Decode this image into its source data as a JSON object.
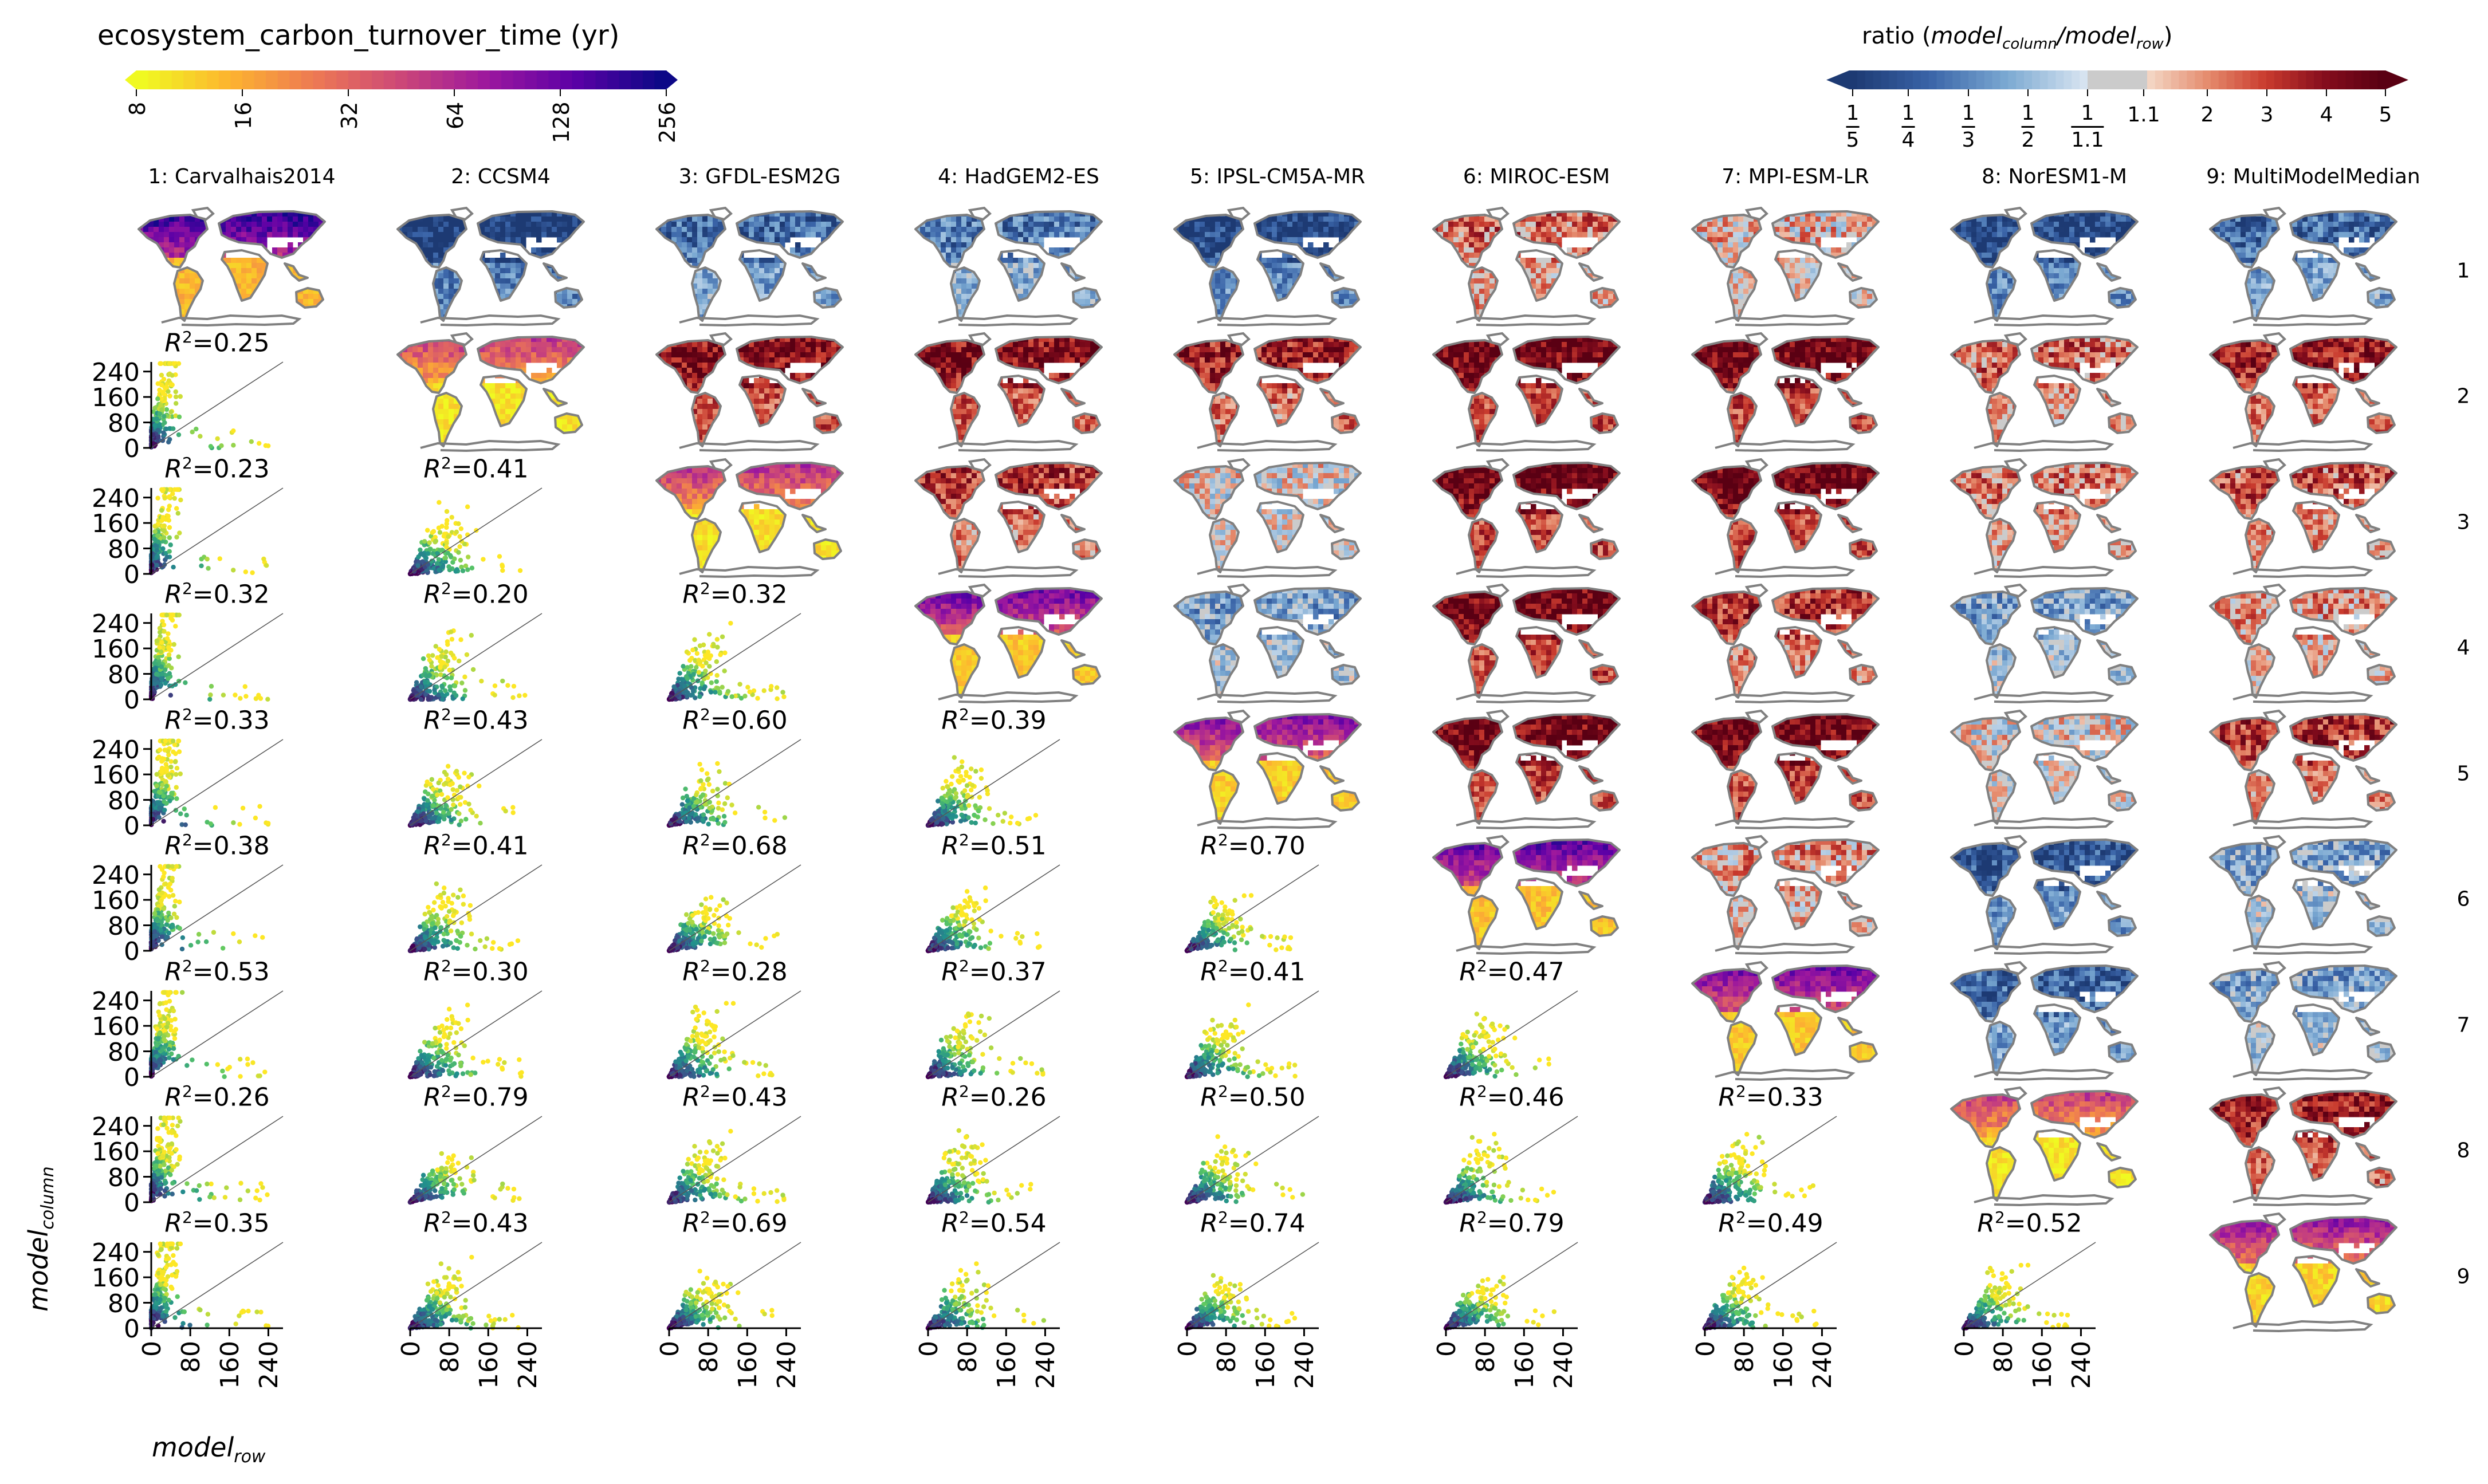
{
  "colorbar_left": {
    "title": "ecosystem_carbon_turnover_time (yr)",
    "ticks": [
      "8",
      "16",
      "32",
      "64",
      "128",
      "256"
    ],
    "scale": "log2",
    "range": [
      8,
      256
    ],
    "colormap": "plasma_r",
    "colors": [
      "#f0f921",
      "#fdb42f",
      "#ed7953",
      "#cc4778",
      "#9c179e",
      "#5c01a6",
      "#0d0887"
    ]
  },
  "colorbar_right": {
    "title_prefix": "ratio (",
    "title_main1": "model",
    "title_sub1": "column",
    "title_sep": "/",
    "title_main2": "model",
    "title_sub2": "row",
    "title_suffix": ")",
    "ticks_fraction": [
      {
        "num": "1",
        "den": "5"
      },
      {
        "num": "1",
        "den": "4"
      },
      {
        "num": "1",
        "den": "3"
      },
      {
        "num": "1",
        "den": "2"
      },
      {
        "num": "1",
        "den": "1.1"
      }
    ],
    "ticks_plain": [
      "1.1",
      "2",
      "3",
      "4",
      "5"
    ],
    "neutral_color": "#cbcbcb",
    "blue_colors": [
      "#1d3a73",
      "#3a64a8",
      "#7ba9d2",
      "#d6e3f0"
    ],
    "red_colors": [
      "#f3d4c2",
      "#e58a6c",
      "#c93b2e",
      "#860d1d",
      "#5a0013"
    ]
  },
  "models": [
    "1: Carvalhais2014",
    "2: CCSM4",
    "3: GFDL-ESM2G",
    "4: HadGEM2-ES",
    "5: IPSL-CM5A-MR",
    "6: MIROC-ESM",
    "7: MPI-ESM-LR",
    "8: NorESM1-M",
    "9: MultiModelMedian"
  ],
  "row_labels": [
    "1",
    "2",
    "3",
    "4",
    "5",
    "6",
    "7",
    "8",
    "9"
  ],
  "axes": {
    "ylabel_main": "model",
    "ylabel_sub": "column",
    "xlabel_main": "model",
    "xlabel_sub": "row",
    "ticks": [
      "0",
      "80",
      "160",
      "240"
    ]
  },
  "r2_prefix": "R",
  "r2_sup": "2",
  "chart_data": {
    "type": "scatter",
    "title": "ecosystem_carbon_turnover_time (yr)",
    "description_kind": "matrix: diagonal = absolute maps, upper triangle = ratio maps, lower triangle = hexbin scatter with R2",
    "xlabel": "model_row",
    "ylabel": "model_column",
    "xlim": [
      0,
      270
    ],
    "ylim": [
      0,
      270
    ],
    "xticks": [
      0,
      80,
      160,
      240
    ],
    "yticks": [
      0,
      80,
      160,
      240
    ],
    "r2_matrix": {
      "rows": [
        "2",
        "3",
        "4",
        "5",
        "6",
        "7",
        "8",
        "9"
      ],
      "values": [
        [
          "0.25"
        ],
        [
          "0.23",
          "0.41"
        ],
        [
          "0.32",
          "0.20",
          "0.32"
        ],
        [
          "0.33",
          "0.43",
          "0.60",
          "0.39"
        ],
        [
          "0.38",
          "0.41",
          "0.68",
          "0.51",
          "0.70"
        ],
        [
          "0.53",
          "0.30",
          "0.28",
          "0.37",
          "0.41",
          "0.47"
        ],
        [
          "0.26",
          "0.79",
          "0.43",
          "0.26",
          "0.50",
          "0.46",
          "0.33"
        ],
        [
          "0.35",
          "0.43",
          "0.69",
          "0.54",
          "0.74",
          "0.79",
          "0.49",
          "0.52"
        ]
      ]
    },
    "ratio_tendency": {
      "note": "dominant sign of log ratio per upper-triangle cell (-1 blue .. +1 red)",
      "matrix": [
        [
          null,
          -0.9,
          -0.6,
          -0.5,
          -0.8,
          0.3,
          0.1,
          -0.8,
          -0.6
        ],
        [
          null,
          null,
          0.7,
          0.7,
          0.6,
          0.8,
          0.8,
          0.35,
          0.6
        ],
        [
          null,
          null,
          null,
          0.5,
          0.0,
          0.8,
          0.8,
          0.3,
          0.4
        ],
        [
          null,
          null,
          null,
          null,
          -0.3,
          0.8,
          0.5,
          -0.3,
          0.2
        ],
        [
          null,
          null,
          null,
          null,
          null,
          0.8,
          0.8,
          0.0,
          0.5
        ],
        [
          null,
          null,
          null,
          null,
          null,
          null,
          0.2,
          -0.7,
          -0.3
        ],
        [
          null,
          null,
          null,
          null,
          null,
          null,
          null,
          -0.6,
          -0.3
        ],
        [
          null,
          null,
          null,
          null,
          null,
          null,
          null,
          null,
          0.6
        ],
        [
          null,
          null,
          null,
          null,
          null,
          null,
          null,
          null,
          null
        ]
      ]
    },
    "diagonal_tendency": [
      0.55,
      0.15,
      0.2,
      0.4,
      0.35,
      0.45,
      0.4,
      0.15,
      0.3
    ]
  }
}
